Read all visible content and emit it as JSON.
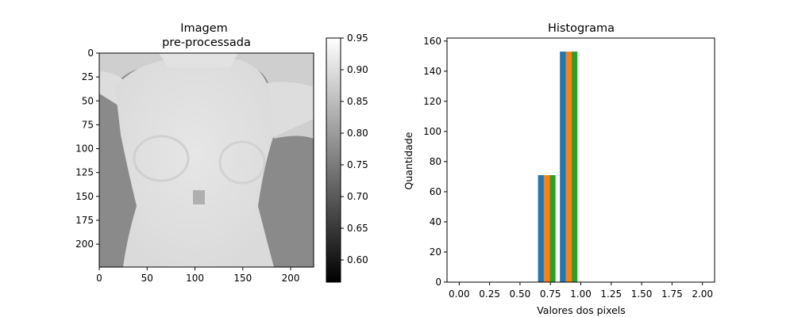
{
  "chart_data": [
    {
      "type": "heatmap",
      "title_lines": [
        "Imagem",
        "pre-processada"
      ],
      "xlabel": "",
      "ylabel": "",
      "xticks": [
        "0",
        "50",
        "100",
        "150",
        "200"
      ],
      "yticks": [
        "0",
        "25",
        "50",
        "75",
        "100",
        "125",
        "150",
        "175",
        "200"
      ],
      "xlim": [
        0,
        224
      ],
      "ylim": [
        224,
        0
      ],
      "colormap": "gray",
      "colorbar": {
        "range": [
          0.565,
          0.95
        ],
        "ticks": [
          "0.60",
          "0.65",
          "0.70",
          "0.75",
          "0.80",
          "0.85",
          "0.90",
          "0.95"
        ]
      }
    },
    {
      "type": "bar",
      "title": "Histograma",
      "xlabel": "Valores dos pixels",
      "ylabel": "Quantidade",
      "xlim": [
        -0.1,
        2.1
      ],
      "ylim": [
        0,
        162
      ],
      "xticks": [
        "0.00",
        "0.25",
        "0.50",
        "0.75",
        "1.00",
        "1.25",
        "1.50",
        "1.75",
        "2.00"
      ],
      "yticks": [
        "0",
        "20",
        "40",
        "60",
        "80",
        "100",
        "120",
        "140",
        "160"
      ],
      "bins": [
        [
          0.63,
          0.81
        ],
        [
          0.81,
          0.99
        ]
      ],
      "series": [
        {
          "color": "#1f77b4",
          "values": [
            71,
            153
          ]
        },
        {
          "color": "#ff7f0e",
          "values": [
            71,
            153
          ]
        },
        {
          "color": "#2ca02c",
          "values": [
            71,
            153
          ]
        }
      ]
    }
  ]
}
